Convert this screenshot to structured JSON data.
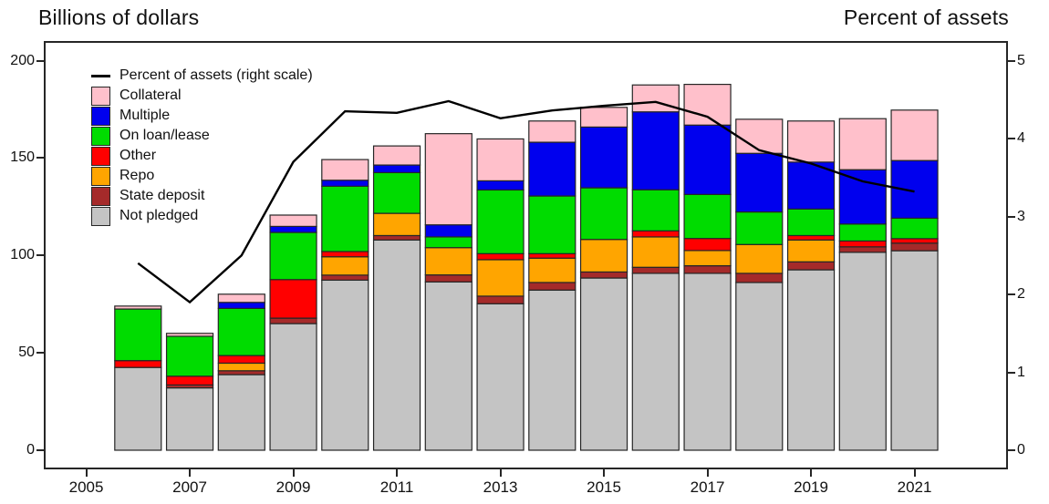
{
  "titles": {
    "left": "Billions of dollars",
    "right": "Percent of assets"
  },
  "legend": [
    {
      "type": "line",
      "label": "Percent of assets (right scale)",
      "color": "#000000"
    },
    {
      "type": "swatch",
      "label": "Collateral",
      "color": "#FFC0CB"
    },
    {
      "type": "swatch",
      "label": "Multiple",
      "color": "#0000EE"
    },
    {
      "type": "swatch",
      "label": "On loan/lease",
      "color": "#00DC00"
    },
    {
      "type": "swatch",
      "label": "Other",
      "color": "#FF0000"
    },
    {
      "type": "swatch",
      "label": "Repo",
      "color": "#FFA500"
    },
    {
      "type": "swatch",
      "label": "State deposit",
      "color": "#A52A2A"
    },
    {
      "type": "swatch",
      "label": "Not pledged",
      "color": "#C4C4C4"
    }
  ],
  "chart_data": {
    "type": "bar",
    "subtype": "stacked-bars-with-line-overlay",
    "years": [
      2006,
      2007,
      2008,
      2009,
      2010,
      2011,
      2012,
      2013,
      2014,
      2015,
      2016,
      2017,
      2018,
      2019,
      2020,
      2021
    ],
    "left_axis": {
      "title": "Billions of dollars",
      "ticks": [
        0,
        50,
        100,
        150,
        200
      ],
      "range": [
        0,
        200
      ]
    },
    "right_axis": {
      "title": "Percent of assets",
      "ticks": [
        0,
        1,
        2,
        3,
        4,
        5
      ],
      "range": [
        0,
        5
      ]
    },
    "x_axis_tick_labels": [
      "2005",
      "2007",
      "2009",
      "2011",
      "2013",
      "2015",
      "2017",
      "2019",
      "2021"
    ],
    "grid": false,
    "legend_position": "top-left-inside",
    "series": [
      {
        "name": "Not pledged",
        "color": "#C4C4C4",
        "values": [
          42.5,
          32.0,
          38.8,
          65.0,
          87.3,
          107.9,
          86.4,
          75.2,
          82.2,
          88.4,
          90.8,
          90.8,
          86.1,
          92.6,
          101.6,
          102.4
        ]
      },
      {
        "name": "State deposit",
        "color": "#A52A2A",
        "values": [
          0,
          1.5,
          2.0,
          2.8,
          2.6,
          2.3,
          3.6,
          3.9,
          3.9,
          3.1,
          3.1,
          3.9,
          4.7,
          4.1,
          2.8,
          3.9
        ]
      },
      {
        "name": "Repo",
        "color": "#FFA500",
        "values": [
          0,
          0,
          3.9,
          0,
          9.4,
          11.4,
          14.0,
          18.7,
          12.5,
          16.7,
          15.6,
          7.8,
          14.8,
          11.2,
          0,
          0
        ]
      },
      {
        "name": "Other",
        "color": "#FF0000",
        "values": [
          3.5,
          4.5,
          3.9,
          19.8,
          2.7,
          0,
          0,
          3.1,
          2.3,
          0,
          3.1,
          6.2,
          0,
          2.3,
          3.0,
          2.3
        ]
      },
      {
        "name": "On loan/lease",
        "color": "#00DC00",
        "values": [
          26.5,
          20.5,
          24.2,
          24.2,
          33.5,
          20.9,
          5.5,
          32.7,
          29.6,
          26.5,
          21.1,
          22.6,
          16.7,
          13.6,
          8.7,
          10.5
        ]
      },
      {
        "name": "Multiple",
        "color": "#0000EE",
        "values": [
          0,
          0,
          3.1,
          3.1,
          3.1,
          3.9,
          6.2,
          4.7,
          27.6,
          31.2,
          40.0,
          35.6,
          30.1,
          24.1,
          27.9,
          29.6
        ]
      },
      {
        "name": "Collateral",
        "color": "#FFC0CB",
        "values": [
          1.5,
          1.5,
          4.2,
          5.8,
          10.6,
          9.8,
          46.8,
          21.5,
          10.9,
          10.1,
          13.8,
          20.9,
          17.5,
          21.1,
          26.2,
          25.9
        ]
      }
    ],
    "bar_totals": [
      74.0,
      60.0,
      80.1,
      120.7,
      149.2,
      156.2,
      162.5,
      159.8,
      169.0,
      176.0,
      187.5,
      187.8,
      169.9,
      169.0,
      170.2,
      174.6
    ],
    "line_series": {
      "name": "Percent of assets (right scale)",
      "color": "#000000",
      "axis": "right",
      "values": [
        2.4,
        1.9,
        2.5,
        3.7,
        4.35,
        4.33,
        4.48,
        4.26,
        4.36,
        4.42,
        4.47,
        4.28,
        3.85,
        3.68,
        3.45,
        3.32
      ]
    }
  }
}
